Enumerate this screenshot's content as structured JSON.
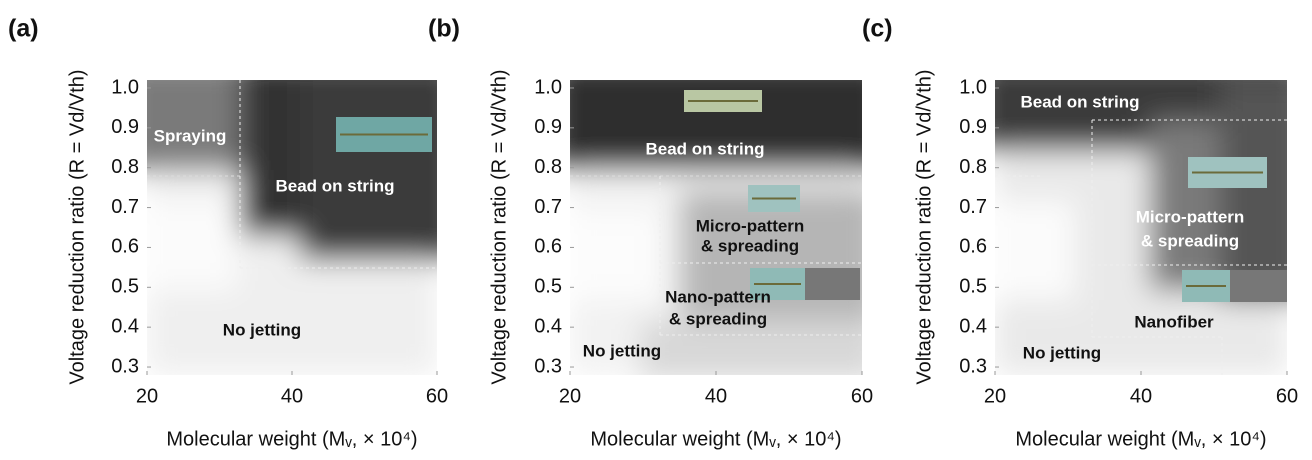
{
  "chart_data": [
    {
      "type": "region-map",
      "panel_label": "(a)",
      "xlabel": "Molecular weight (Mᵥ, × 10⁴)",
      "ylabel": "Voltage reduction ratio (R = Vd/Vth)",
      "xlim": [
        20,
        60
      ],
      "ylim": [
        0.28,
        1.02
      ],
      "xticks": [
        20,
        40,
        60
      ],
      "yticks": [
        0.3,
        0.4,
        0.5,
        0.6,
        0.7,
        0.8,
        0.9,
        {
          "value": 1,
          "label": "1.0"
        }
      ],
      "annotations": [
        "Spraying",
        "Bead on string",
        "No jetting"
      ]
    },
    {
      "type": "region-map",
      "panel_label": "(b)",
      "xlabel": "Molecular weight (Mᵥ, × 10⁴)",
      "ylabel": "Voltage reduction ratio (R = Vd/Vth)",
      "xlim": [
        20,
        60
      ],
      "ylim": [
        0.28,
        1.02
      ],
      "xticks": [
        20,
        40,
        60
      ],
      "yticks": [
        0.3,
        0.4,
        0.5,
        0.6,
        0.7,
        0.8,
        0.9,
        {
          "value": 1,
          "label": "1.0"
        }
      ],
      "annotations": [
        "Bead on string",
        "Micro-pattern",
        "& spreading",
        "Nano-pattern",
        "& spreading",
        "No jetting"
      ]
    },
    {
      "type": "region-map",
      "panel_label": "(c)",
      "xlabel": "Molecular weight (Mᵥ, × 10⁴)",
      "ylabel": "Voltage reduction ratio (R = Vd/Vth)",
      "xlim": [
        20,
        60
      ],
      "ylim": [
        0.28,
        1.02
      ],
      "xticks": [
        20,
        40,
        60
      ],
      "yticks": [
        0.3,
        0.4,
        0.5,
        0.6,
        0.7,
        0.8,
        0.9,
        {
          "value": 1,
          "label": "1.0"
        }
      ],
      "annotations": [
        "Bead on string",
        "Micro-pattern",
        "& spreading",
        "Nanofiber",
        "No jetting"
      ]
    }
  ]
}
